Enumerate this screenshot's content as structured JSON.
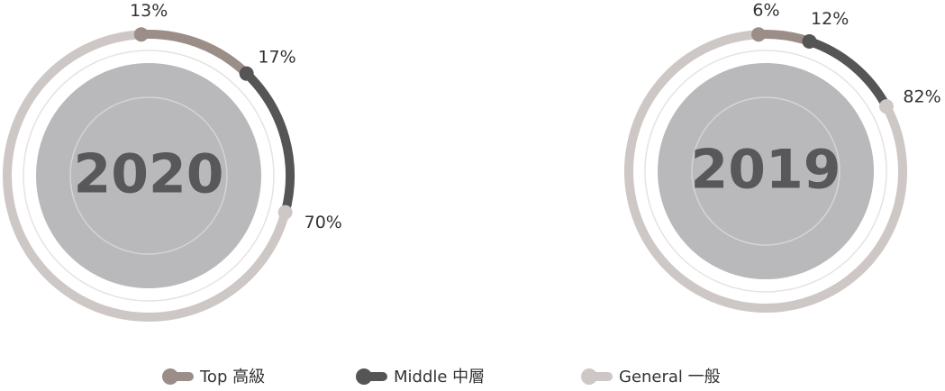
{
  "chart_data": {
    "type": "donut",
    "categories": [
      "Top 高級",
      "Middle 中層",
      "General 一般"
    ],
    "colors": [
      "#9b8e88",
      "#555556",
      "#cdc7c5"
    ],
    "series": [
      {
        "name": "2020",
        "values": [
          13,
          17,
          70
        ],
        "value_labels": [
          "13%",
          "17%",
          "70%"
        ]
      },
      {
        "name": "2019",
        "values": [
          6,
          12,
          82
        ],
        "value_labels": [
          "6%",
          "12%",
          "82%"
        ]
      }
    ]
  }
}
